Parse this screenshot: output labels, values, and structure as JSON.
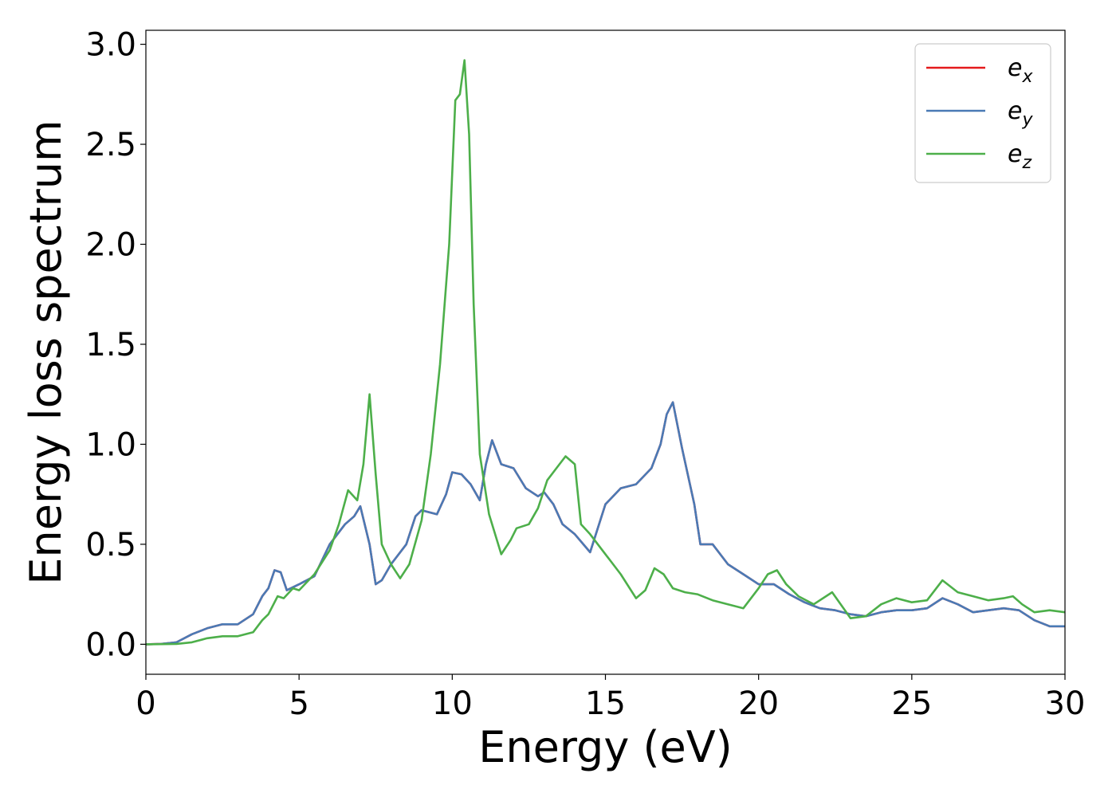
{
  "chart_data": {
    "type": "line",
    "title": "",
    "xlabel": "Energy (eV)",
    "ylabel": "Energy loss spectrum",
    "xlim": [
      0,
      30
    ],
    "ylim": [
      -0.15,
      3.07
    ],
    "xticks": [
      0,
      5,
      10,
      15,
      20,
      25,
      30
    ],
    "xtick_labels": [
      "0",
      "5",
      "10",
      "15",
      "20",
      "25",
      "30"
    ],
    "yticks": [
      0.0,
      0.5,
      1.0,
      1.5,
      2.0,
      2.5,
      3.0
    ],
    "ytick_labels": [
      "0.0",
      "0.5",
      "1.0",
      "1.5",
      "2.0",
      "2.5",
      "3.0"
    ],
    "grid": false,
    "legend_position": "top-right",
    "series": [
      {
        "name": "e_x",
        "name_base": "e",
        "name_sub": "x",
        "color": "#e41a1c",
        "x": [
          0,
          0.5,
          1,
          1.5,
          2,
          2.5,
          3,
          3.5,
          3.8,
          4,
          4.2,
          4.4,
          4.6,
          5,
          5.5,
          6,
          6.5,
          6.8,
          7,
          7.3,
          7.5,
          7.7,
          8,
          8.5,
          8.8,
          9,
          9.5,
          9.8,
          10,
          10.3,
          10.6,
          10.9,
          11.1,
          11.3,
          11.6,
          12,
          12.4,
          12.8,
          13,
          13.3,
          13.6,
          14,
          14.5,
          15,
          15.5,
          16,
          16.5,
          16.8,
          17,
          17.2,
          17.5,
          17.9,
          18.1,
          18.5,
          19,
          19.5,
          20,
          20.5,
          21,
          21.5,
          22,
          22.5,
          23,
          23.5,
          24,
          24.5,
          25,
          25.5,
          26,
          26.5,
          27,
          27.5,
          28,
          28.5,
          29,
          29.5,
          30
        ],
        "y": [
          0,
          0.002,
          0.01,
          0.05,
          0.08,
          0.1,
          0.1,
          0.15,
          0.24,
          0.28,
          0.37,
          0.36,
          0.27,
          0.3,
          0.34,
          0.5,
          0.6,
          0.64,
          0.69,
          0.5,
          0.3,
          0.32,
          0.4,
          0.5,
          0.64,
          0.67,
          0.65,
          0.75,
          0.86,
          0.85,
          0.8,
          0.72,
          0.9,
          1.02,
          0.9,
          0.88,
          0.78,
          0.74,
          0.76,
          0.7,
          0.6,
          0.55,
          0.46,
          0.7,
          0.78,
          0.8,
          0.88,
          1.0,
          1.15,
          1.21,
          0.98,
          0.7,
          0.5,
          0.5,
          0.4,
          0.35,
          0.3,
          0.3,
          0.25,
          0.21,
          0.18,
          0.17,
          0.15,
          0.14,
          0.16,
          0.17,
          0.17,
          0.18,
          0.23,
          0.2,
          0.16,
          0.17,
          0.18,
          0.17,
          0.12,
          0.09,
          0.09
        ]
      },
      {
        "name": "e_y",
        "name_base": "e",
        "name_sub": "y",
        "color": "#4a7ab5",
        "x": [
          0,
          0.5,
          1,
          1.5,
          2,
          2.5,
          3,
          3.5,
          3.8,
          4,
          4.2,
          4.4,
          4.6,
          5,
          5.5,
          6,
          6.5,
          6.8,
          7,
          7.3,
          7.5,
          7.7,
          8,
          8.5,
          8.8,
          9,
          9.5,
          9.8,
          10,
          10.3,
          10.6,
          10.9,
          11.1,
          11.3,
          11.6,
          12,
          12.4,
          12.8,
          13,
          13.3,
          13.6,
          14,
          14.5,
          15,
          15.5,
          16,
          16.5,
          16.8,
          17,
          17.2,
          17.5,
          17.9,
          18.1,
          18.5,
          19,
          19.5,
          20,
          20.5,
          21,
          21.5,
          22,
          22.5,
          23,
          23.5,
          24,
          24.5,
          25,
          25.5,
          26,
          26.5,
          27,
          27.5,
          28,
          28.5,
          29,
          29.5,
          30
        ],
        "y": [
          0,
          0.002,
          0.01,
          0.05,
          0.08,
          0.1,
          0.1,
          0.15,
          0.24,
          0.28,
          0.37,
          0.36,
          0.27,
          0.3,
          0.34,
          0.5,
          0.6,
          0.64,
          0.69,
          0.5,
          0.3,
          0.32,
          0.4,
          0.5,
          0.64,
          0.67,
          0.65,
          0.75,
          0.86,
          0.85,
          0.8,
          0.72,
          0.9,
          1.02,
          0.9,
          0.88,
          0.78,
          0.74,
          0.76,
          0.7,
          0.6,
          0.55,
          0.46,
          0.7,
          0.78,
          0.8,
          0.88,
          1.0,
          1.15,
          1.21,
          0.98,
          0.7,
          0.5,
          0.5,
          0.4,
          0.35,
          0.3,
          0.3,
          0.25,
          0.21,
          0.18,
          0.17,
          0.15,
          0.14,
          0.16,
          0.17,
          0.17,
          0.18,
          0.23,
          0.2,
          0.16,
          0.17,
          0.18,
          0.17,
          0.12,
          0.09,
          0.09
        ]
      },
      {
        "name": "e_z",
        "name_base": "e",
        "name_sub": "z",
        "color": "#4daf4a",
        "x": [
          0,
          1,
          1.5,
          2,
          2.5,
          3,
          3.5,
          3.8,
          4,
          4.3,
          4.5,
          4.8,
          5,
          5.5,
          6,
          6.3,
          6.6,
          6.9,
          7.1,
          7.3,
          7.5,
          7.7,
          8,
          8.3,
          8.6,
          9,
          9.3,
          9.6,
          9.9,
          10.1,
          10.25,
          10.4,
          10.55,
          10.7,
          10.9,
          11.2,
          11.6,
          11.9,
          12.1,
          12.5,
          12.8,
          13.1,
          13.4,
          13.7,
          14,
          14.2,
          14.5,
          15,
          15.5,
          16,
          16.3,
          16.6,
          16.9,
          17.2,
          17.6,
          18,
          18.5,
          19,
          19.5,
          20,
          20.3,
          20.6,
          20.9,
          21.3,
          21.8,
          22.4,
          23,
          23.5,
          24,
          24.5,
          25,
          25.5,
          26,
          26.5,
          27,
          27.5,
          28,
          28.3,
          28.6,
          29,
          29.5,
          30
        ],
        "y": [
          0,
          0.002,
          0.01,
          0.03,
          0.04,
          0.04,
          0.06,
          0.12,
          0.15,
          0.24,
          0.23,
          0.28,
          0.27,
          0.35,
          0.47,
          0.6,
          0.77,
          0.72,
          0.9,
          1.25,
          0.85,
          0.5,
          0.4,
          0.33,
          0.4,
          0.62,
          0.95,
          1.4,
          2.0,
          2.72,
          2.75,
          2.92,
          2.55,
          1.7,
          0.95,
          0.65,
          0.45,
          0.52,
          0.58,
          0.6,
          0.68,
          0.82,
          0.88,
          0.94,
          0.9,
          0.6,
          0.55,
          0.45,
          0.35,
          0.23,
          0.27,
          0.38,
          0.35,
          0.28,
          0.26,
          0.25,
          0.22,
          0.2,
          0.18,
          0.28,
          0.35,
          0.37,
          0.3,
          0.24,
          0.2,
          0.26,
          0.13,
          0.14,
          0.2,
          0.23,
          0.21,
          0.22,
          0.32,
          0.26,
          0.24,
          0.22,
          0.23,
          0.24,
          0.2,
          0.16,
          0.17,
          0.16
        ]
      }
    ]
  }
}
